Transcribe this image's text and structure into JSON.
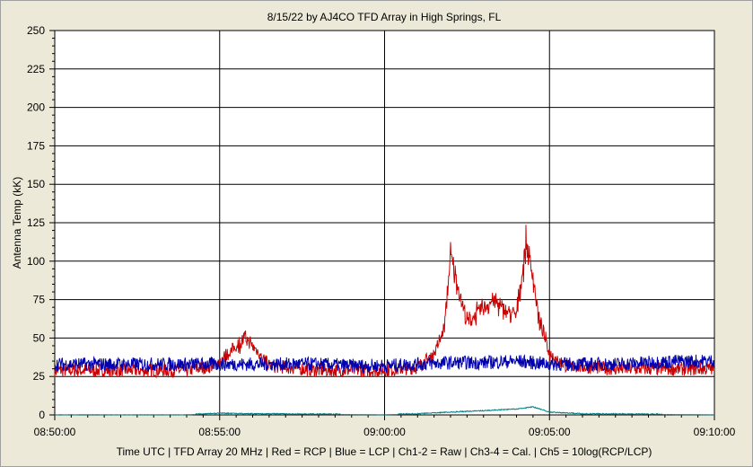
{
  "chart_data": {
    "type": "line",
    "title": "8/15/22  by  AJ4CO TFD Array  in  High Springs, FL",
    "ylabel": "Antenna Temp (kK)",
    "footer": "Time UTC | TFD Array 20 MHz | Red = RCP | Blue = LCP | Ch1-2 = Raw | Ch3-4 = Cal. | Ch5 = 10log(RCP/LCP)",
    "ylim": [
      0,
      250
    ],
    "y_ticks": [
      "250",
      "225",
      "200",
      "175",
      "150",
      "125",
      "100",
      "75",
      "50",
      "25",
      "0"
    ],
    "y_tick_values": [
      250,
      225,
      200,
      175,
      150,
      125,
      100,
      75,
      50,
      25,
      0
    ],
    "x_ticks": [
      "08:50:00",
      "08:55:00",
      "09:00:00",
      "09:05:00",
      "09:10:00"
    ],
    "x_tick_minutes": [
      0,
      5,
      10,
      15,
      20
    ],
    "xlim_minutes": [
      0,
      20
    ],
    "grid": true,
    "series": [
      {
        "color": "#0000b0",
        "role": "LCP",
        "x": [
          0,
          1,
          2,
          3,
          4,
          5,
          6,
          7,
          8,
          9,
          10,
          11,
          12,
          13,
          14,
          15,
          16,
          17,
          18,
          19,
          20
        ],
        "values": [
          33,
          33,
          33,
          33,
          33,
          33,
          33,
          33,
          33,
          32,
          32,
          33,
          34,
          34,
          35,
          33,
          33,
          33,
          34,
          35,
          35
        ]
      },
      {
        "color": "#cc0000",
        "role": "RCP",
        "x": [
          0,
          2,
          4,
          4.8,
          5.2,
          5.8,
          6.5,
          8,
          10,
          11,
          11.5,
          11.8,
          12,
          12.5,
          13,
          13.3,
          13.6,
          14,
          14.3,
          14.5,
          14.7,
          15,
          15.5,
          17,
          20
        ],
        "values": [
          29,
          29,
          29,
          32,
          38,
          50,
          32,
          29,
          29,
          31,
          40,
          55,
          103,
          60,
          70,
          75,
          68,
          65,
          112,
          90,
          60,
          40,
          32,
          30,
          30
        ]
      },
      {
        "color": "#008080",
        "role": "Ch5",
        "x": [
          0,
          4,
          5,
          6,
          8,
          10,
          11,
          12,
          13,
          14,
          14.5,
          15,
          16,
          20
        ],
        "values": [
          0,
          0,
          0.8,
          0.5,
          0.3,
          0,
          0.5,
          1.5,
          2.5,
          3.5,
          5,
          1.5,
          0.5,
          0
        ]
      }
    ]
  }
}
